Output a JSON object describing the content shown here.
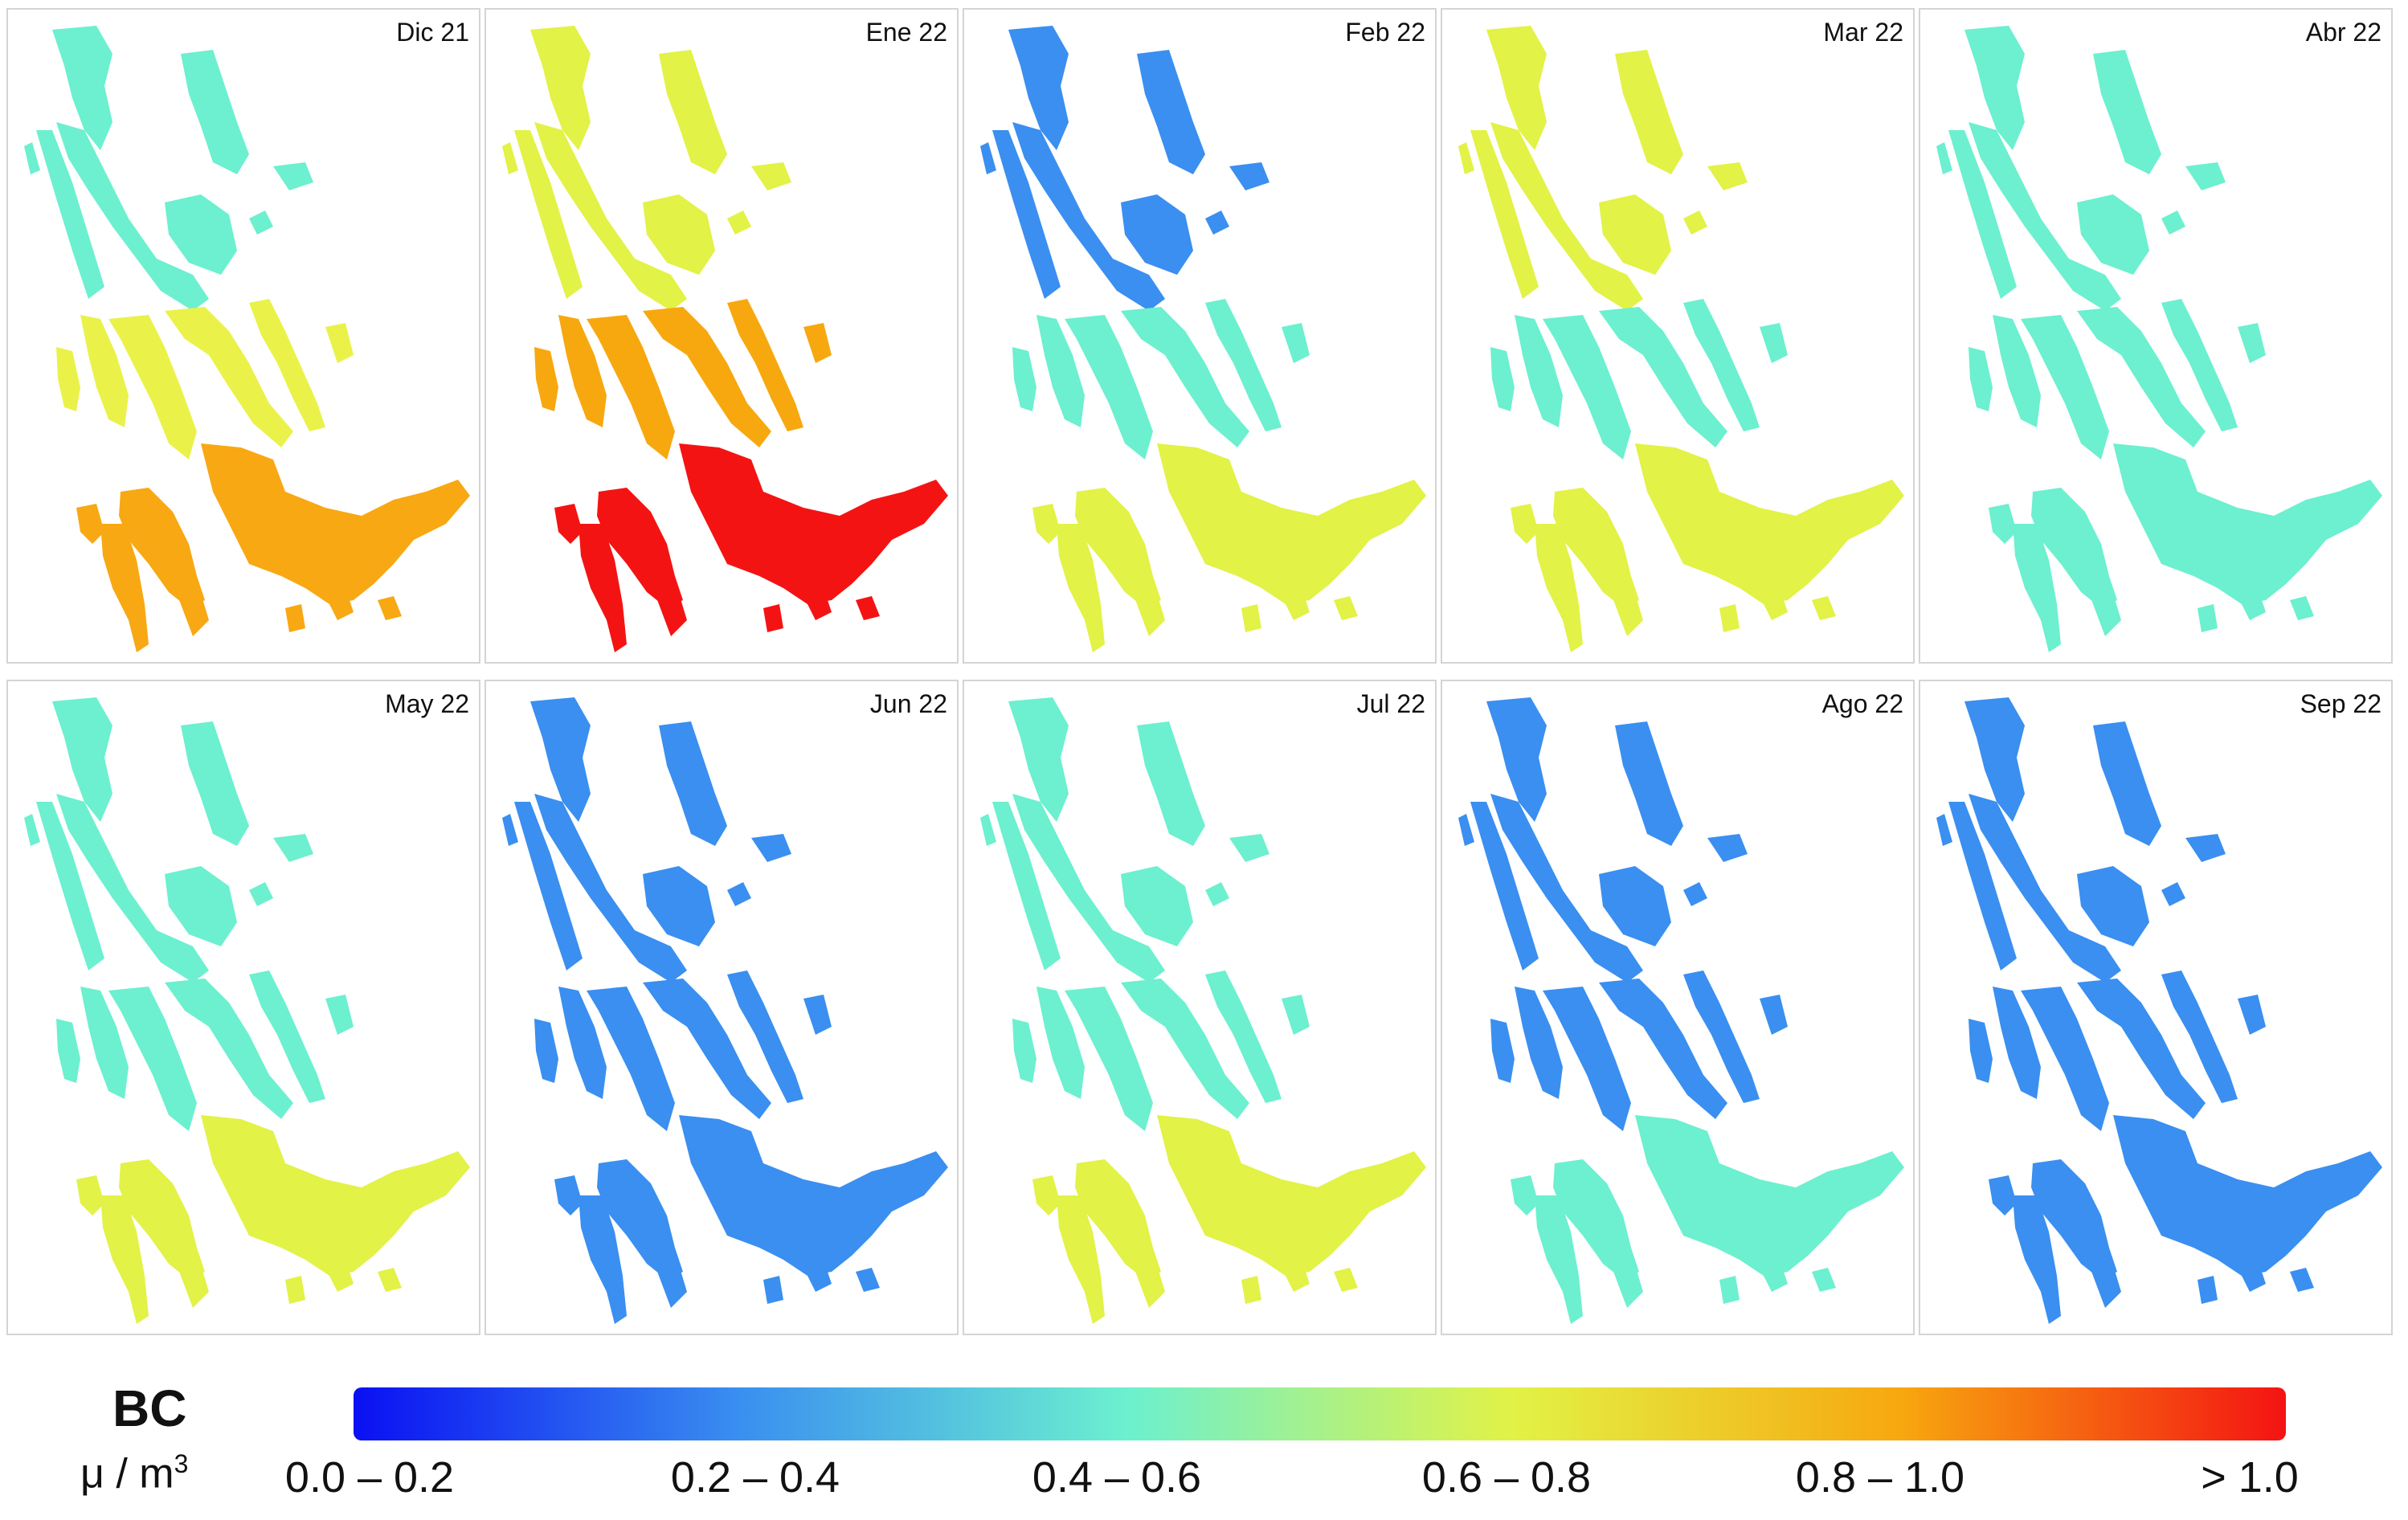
{
  "panels": [
    {
      "label": "Dic 21",
      "zones": {
        "north": "#6cf0cf",
        "middle": "#eaf24a",
        "south": "#f8a812"
      }
    },
    {
      "label": "Ene 22",
      "zones": {
        "north": "#e2f246",
        "middle": "#f7a80f",
        "south": "#f41313"
      }
    },
    {
      "label": "Feb 22",
      "zones": {
        "north": "#3a8ff0",
        "middle": "#6cf0cf",
        "south": "#e2f246"
      }
    },
    {
      "label": "Mar 22",
      "zones": {
        "north": "#e2f246",
        "middle": "#6cf0cf",
        "south": "#e2f246"
      }
    },
    {
      "label": "Abr 22",
      "zones": {
        "north": "#6cf0cf",
        "middle": "#6cf0cf",
        "south": "#6cf0cf"
      }
    },
    {
      "label": "May 22",
      "zones": {
        "north": "#6cf0cf",
        "middle": "#6cf0cf",
        "south": "#e2f246"
      }
    },
    {
      "label": "Jun 22",
      "zones": {
        "north": "#3a8ff0",
        "middle": "#3a8ff0",
        "south": "#3a8ff0"
      }
    },
    {
      "label": "Jul 22",
      "zones": {
        "north": "#6cf0cf",
        "middle": "#6cf0cf",
        "south": "#e2f246"
      }
    },
    {
      "label": "Ago 22",
      "zones": {
        "north": "#3a8ff0",
        "middle": "#3a8ff0",
        "south": "#6cf0cf"
      }
    },
    {
      "label": "Sep 22",
      "zones": {
        "north": "#3a8ff0",
        "middle": "#3a8ff0",
        "south": "#3a8ff0"
      }
    }
  ],
  "legend": {
    "title": "BC",
    "unit_base": "μ / m",
    "unit_exp": "3",
    "ticks": [
      "0.0 – 0.2",
      "0.2 – 0.4",
      "0.4 – 0.6",
      "0.6 – 0.8",
      "0.8 – 1.0",
      "> 1.0"
    ],
    "colors": [
      "#0a10f2",
      "#3a8ff0",
      "#6cf0cf",
      "#e2f246",
      "#f7a80f",
      "#f41313"
    ]
  }
}
